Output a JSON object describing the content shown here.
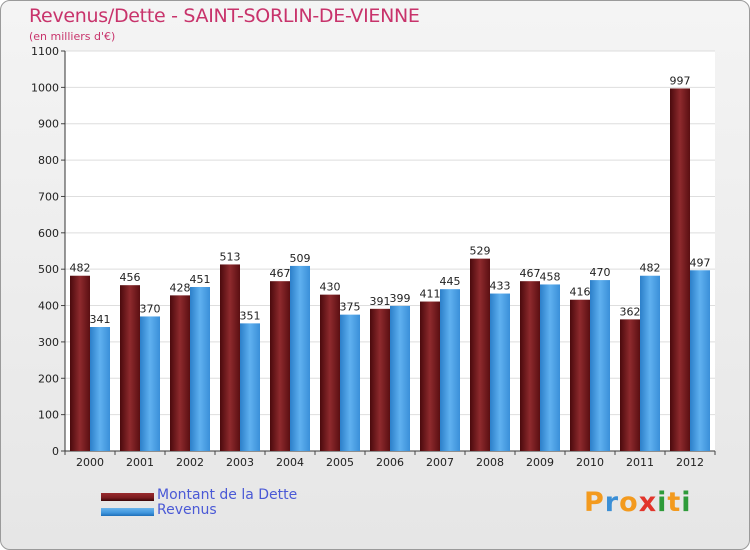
{
  "colors": {
    "dette": "#7a1c1f",
    "revenus": "#3f95dd",
    "title": "#c8336b",
    "legend_text": "#4a59d6"
  },
  "chart_data": {
    "type": "bar",
    "title": "Revenus/Dette - SAINT-SORLIN-DE-VIENNE",
    "subtitle": "(en milliers d'€)",
    "xlabel": "",
    "ylabel": "",
    "ylim": [
      0,
      1100
    ],
    "yticks": [
      0,
      100,
      200,
      300,
      400,
      500,
      600,
      700,
      800,
      900,
      1000,
      1100
    ],
    "grid": true,
    "legend_position": "bottom-left",
    "categories": [
      "2000",
      "2001",
      "2002",
      "2003",
      "2004",
      "2005",
      "2006",
      "2007",
      "2008",
      "2009",
      "2010",
      "2011",
      "2012"
    ],
    "series": [
      {
        "name": "Montant de la Dette",
        "values": [
          482,
          456,
          428,
          513,
          467,
          430,
          391,
          411,
          529,
          467,
          416,
          362,
          997
        ]
      },
      {
        "name": "Revenus",
        "values": [
          341,
          370,
          451,
          351,
          509,
          375,
          399,
          445,
          433,
          458,
          470,
          482,
          497
        ]
      }
    ]
  },
  "logo": {
    "letters": [
      "P",
      "r",
      "o",
      "x",
      "i",
      "t",
      "i"
    ],
    "colors": [
      "#f39a1e",
      "#3b8fd6",
      "#f39a1e",
      "#e2352b",
      "#2e9b3a",
      "#f39a1e",
      "#2e9b3a"
    ]
  }
}
